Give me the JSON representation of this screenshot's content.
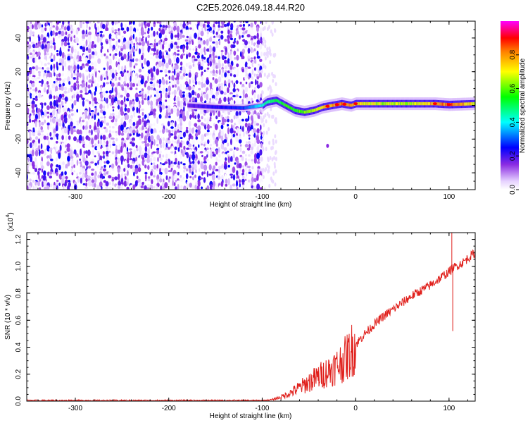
{
  "title": "C2E5.2026.049.18.44.R20",
  "chart_data": [
    {
      "type": "heatmap",
      "xlabel": "Height of straight line (km)",
      "ylabel": "Frequency (Hz)",
      "xlim": [
        -352,
        128
      ],
      "ylim": [
        -50,
        50
      ],
      "xticks": [
        -300,
        -200,
        -100,
        0,
        100
      ],
      "yticks": [
        -40,
        -20,
        0,
        20,
        40
      ],
      "colorbar": {
        "label": "Normalized spectral amplitude",
        "range": [
          0,
          1
        ],
        "ticks": [
          0.0,
          0.2,
          0.4,
          0.6,
          0.8
        ],
        "colormap": "white-violet-blue-cyan-green-yellow-red-magenta"
      },
      "noise_region": {
        "x": [
          -352,
          -100
        ],
        "y": [
          -50,
          50
        ],
        "amplitude": [
          0.0,
          0.25
        ]
      },
      "ridge": [
        {
          "x": -180,
          "y": 0.0,
          "amplitude": 0.2
        },
        {
          "x": -150,
          "y": -1.0,
          "amplitude": 0.25
        },
        {
          "x": -120,
          "y": -1.5,
          "amplitude": 0.3
        },
        {
          "x": -100,
          "y": 0.0,
          "amplitude": 0.45
        },
        {
          "x": -95,
          "y": 2.0,
          "amplitude": 0.5
        },
        {
          "x": -85,
          "y": 3.0,
          "amplitude": 0.55
        },
        {
          "x": -75,
          "y": 0.0,
          "amplitude": 0.6
        },
        {
          "x": -65,
          "y": -3.0,
          "amplitude": 0.6
        },
        {
          "x": -55,
          "y": -4.0,
          "amplitude": 0.65
        },
        {
          "x": -45,
          "y": -3.0,
          "amplitude": 0.7
        },
        {
          "x": -35,
          "y": -1.0,
          "amplitude": 0.8
        },
        {
          "x": -25,
          "y": 0.0,
          "amplitude": 0.85
        },
        {
          "x": -15,
          "y": 1.0,
          "amplitude": 0.9
        },
        {
          "x": -5,
          "y": 0.0,
          "amplitude": 0.85
        },
        {
          "x": 0,
          "y": 1.0,
          "amplitude": 0.8
        },
        {
          "x": 10,
          "y": 1.0,
          "amplitude": 0.75
        },
        {
          "x": 30,
          "y": 1.0,
          "amplitude": 0.7
        },
        {
          "x": 60,
          "y": 1.0,
          "amplitude": 0.72
        },
        {
          "x": 85,
          "y": 1.0,
          "amplitude": 0.85
        },
        {
          "x": 100,
          "y": 0.5,
          "amplitude": 0.9
        },
        {
          "x": 128,
          "y": 1.0,
          "amplitude": 0.75
        }
      ],
      "spots": [
        {
          "x": -30,
          "y": -24,
          "amplitude": 0.15
        }
      ]
    },
    {
      "type": "line",
      "xlabel": "Height of straight line (km)",
      "ylabel": "SNR (10 * v/v)",
      "yscale_label": "(x10",
      "yscale_exponent": "4",
      "xlim": [
        -352,
        128
      ],
      "ylim": [
        0,
        1.25
      ],
      "xticks": [
        -300,
        -200,
        -100,
        0,
        100
      ],
      "yticks": [
        0.0,
        0.2,
        0.4,
        0.6,
        0.8,
        1.0,
        1.2
      ],
      "series_color": "#e0201c",
      "series": [
        {
          "x": [
            -352,
            -300,
            -250,
            -200,
            -150,
            -100,
            -90,
            -80,
            -70,
            -60,
            -50,
            -40,
            -30,
            -20,
            -10,
            0,
            10,
            20,
            30,
            40,
            50,
            60,
            70,
            80,
            90,
            100,
            103,
            105,
            110,
            115,
            120,
            128
          ],
          "values": [
            0.005,
            0.005,
            0.005,
            0.005,
            0.005,
            0.005,
            0.01,
            0.03,
            0.06,
            0.1,
            0.14,
            0.18,
            0.22,
            0.26,
            0.32,
            0.42,
            0.5,
            0.57,
            0.63,
            0.68,
            0.73,
            0.78,
            0.82,
            0.86,
            0.91,
            0.96,
            0.98,
            0.99,
            1.01,
            1.03,
            1.06,
            1.1
          ]
        }
      ],
      "annotations": [
        {
          "x": 103,
          "y": 1.28,
          "note": "spike"
        },
        {
          "x": 104,
          "y": 0.52,
          "note": "dip"
        }
      ]
    }
  ]
}
